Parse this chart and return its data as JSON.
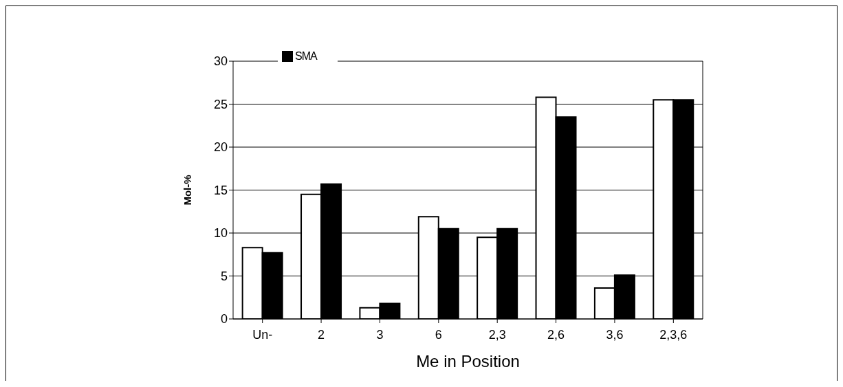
{
  "chart_data": {
    "type": "bar",
    "xlabel": "Me in Position",
    "ylabel": "Mol-%",
    "categories": [
      "Un-",
      "2",
      "3",
      "6",
      "2,3",
      "2,6",
      "3,6",
      "2,3,6"
    ],
    "series": [
      {
        "color": "#ffffff",
        "values": [
          8.3,
          14.5,
          1.3,
          11.9,
          9.5,
          25.8,
          3.6,
          25.5
        ]
      },
      {
        "name": "SMA",
        "color": "#000000",
        "values": [
          7.7,
          15.7,
          1.8,
          10.5,
          10.5,
          23.5,
          5.1,
          25.5
        ]
      }
    ],
    "ylim": [
      0,
      30
    ],
    "yticks": [
      0,
      5,
      10,
      15,
      20,
      25,
      30
    ],
    "grid": "y",
    "legend": "top left"
  }
}
